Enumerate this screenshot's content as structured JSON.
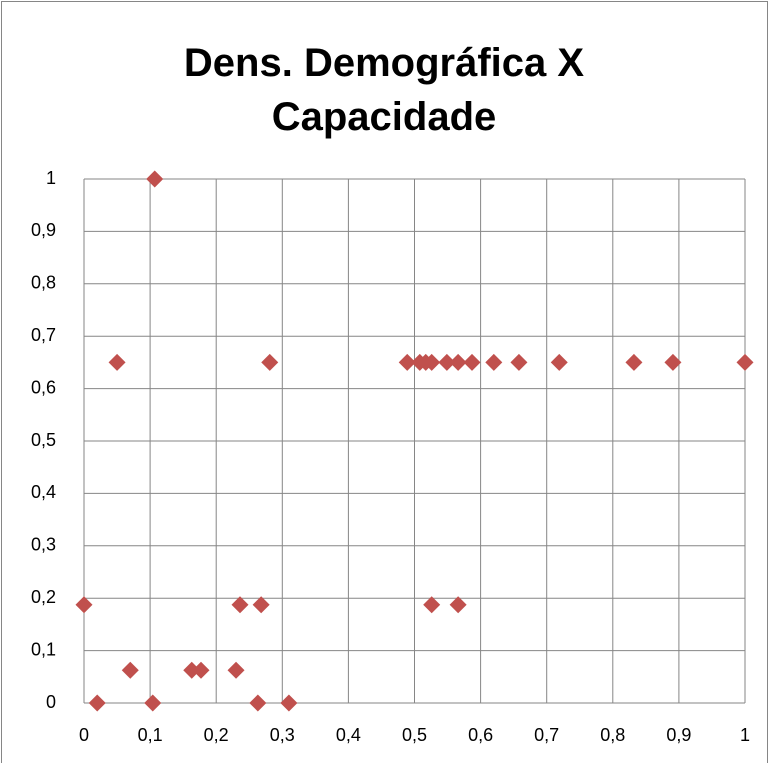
{
  "chart_data": {
    "type": "scatter",
    "title": "Dens. Demográfica X Capacidade",
    "series": [
      {
        "color": "#c0504d",
        "x": [
          0,
          0.02,
          0.05,
          0.07,
          0.104,
          0.107,
          0.163,
          0.177,
          0.23,
          0.236,
          0.263,
          0.268,
          0.281,
          0.31,
          0.489,
          0.508,
          0.517,
          0.526,
          0.526,
          0.549,
          0.566,
          0.566,
          0.587,
          0.62,
          0.658,
          0.719,
          0.832,
          0.891,
          1
        ],
        "values": [
          0.1875,
          0,
          0.65,
          0.0625,
          0,
          1,
          0.0625,
          0.0625,
          0.0625,
          0.1875,
          0,
          0.1875,
          0.65,
          0,
          0.65,
          0.65,
          0.65,
          0.65,
          0.1875,
          0.65,
          0.65,
          0.1875,
          0.65,
          0.65,
          0.65,
          0.65,
          0.65,
          0.65,
          0.65
        ]
      }
    ],
    "xlim": [
      0,
      1
    ],
    "xticks": [
      0,
      {
        "value": 0.1,
        "label": "0,1"
      },
      {
        "value": 0.2,
        "label": "0,2"
      },
      {
        "value": 0.3,
        "label": "0,3"
      },
      {
        "value": 0.4,
        "label": "0,4"
      },
      {
        "value": 0.5,
        "label": "0,5"
      },
      {
        "value": 0.6,
        "label": "0,6"
      },
      {
        "value": 0.7,
        "label": "0,7"
      },
      {
        "value": 0.8,
        "label": "0,8"
      },
      {
        "value": 0.9,
        "label": "0,9"
      },
      1
    ],
    "ylim": [
      0,
      1
    ],
    "yticks": [
      0,
      {
        "value": 0.1,
        "label": "0,1"
      },
      {
        "value": 0.2,
        "label": "0,2"
      },
      {
        "value": 0.3,
        "label": "0,3"
      },
      {
        "value": 0.4,
        "label": "0,4"
      },
      {
        "value": 0.5,
        "label": "0,5"
      },
      {
        "value": 0.6,
        "label": "0,6"
      },
      {
        "value": 0.7,
        "label": "0,7"
      },
      {
        "value": 0.8,
        "label": "0,8"
      },
      {
        "value": 0.9,
        "label": "0,9"
      },
      1
    ],
    "grid": true
  }
}
